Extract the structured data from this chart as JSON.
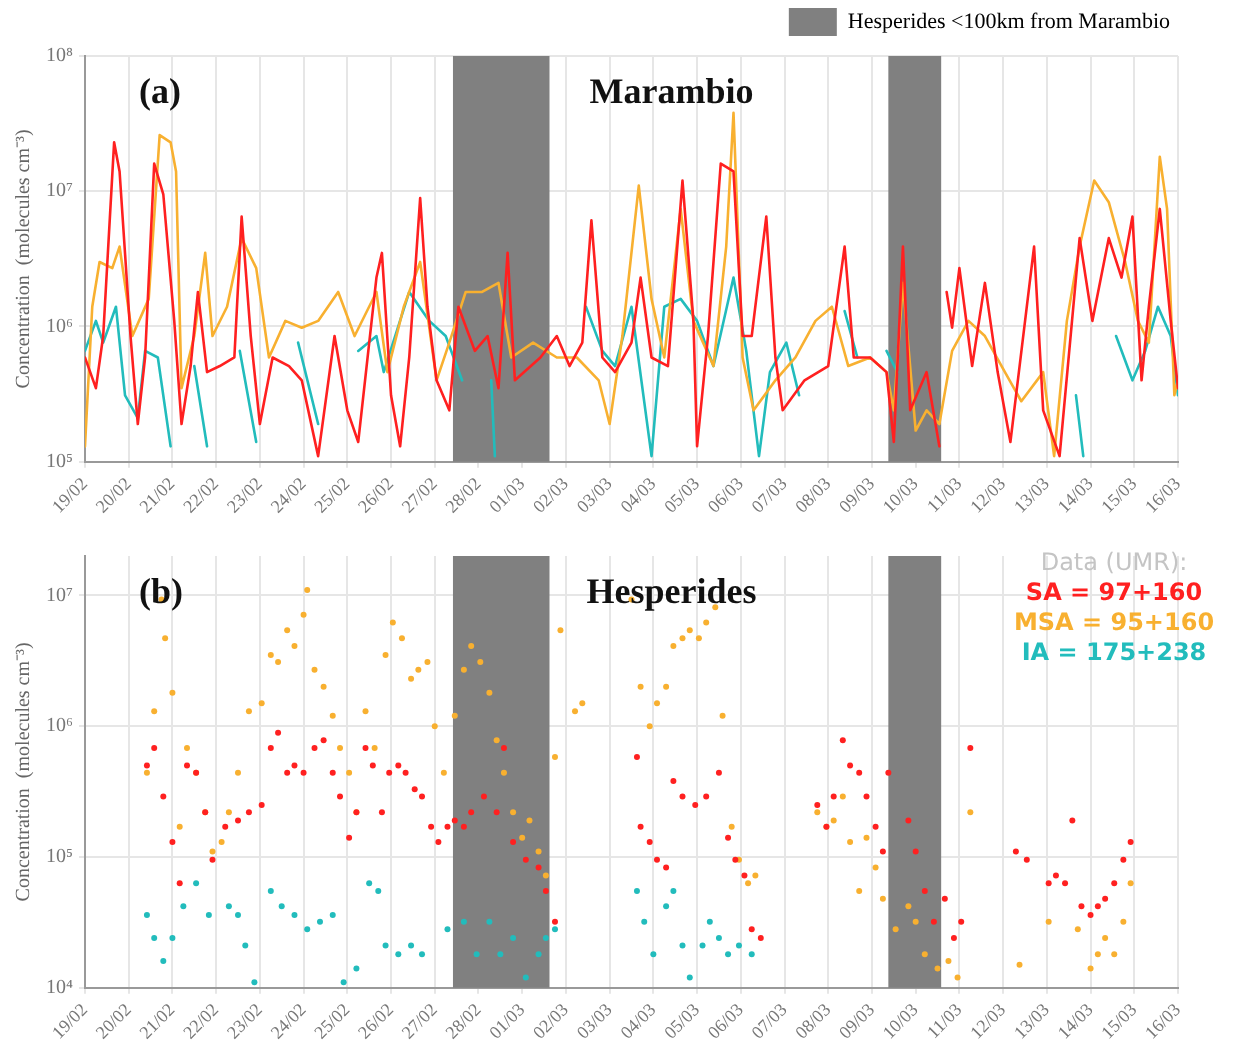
{
  "chart_data": [
    {
      "type": "line",
      "title": "Marambio",
      "annotations": [
        "(a)"
      ],
      "ylabel": "Concentration  (molecules cm⁻³)",
      "log": true,
      "grid": true,
      "marker": "none",
      "line_style": "solid",
      "legend": "top right",
      "xlim": [
        "--02-19",
        "--03-16"
      ],
      "xticks": [
        {
          "value": "--02-19",
          "label": "19/02"
        },
        {
          "value": "--02-20",
          "label": "20/02"
        },
        {
          "value": "--02-21",
          "label": "21/02"
        },
        {
          "value": "--02-22",
          "label": "22/02"
        },
        {
          "value": "--02-23",
          "label": "23/02"
        },
        {
          "value": "--02-24",
          "label": "24/02"
        },
        {
          "value": "--02-25",
          "label": "25/02"
        },
        {
          "value": "--02-26",
          "label": "26/02"
        },
        {
          "value": "--02-27",
          "label": "27/02"
        },
        {
          "value": "--02-28",
          "label": "28/02"
        },
        {
          "value": "--03-01",
          "label": "01/03"
        },
        {
          "value": "--03-02",
          "label": "02/03"
        },
        {
          "value": "--03-03",
          "label": "03/03"
        },
        {
          "value": "--03-04",
          "label": "04/03"
        },
        {
          "value": "--03-05",
          "label": "05/03"
        },
        {
          "value": "--03-06",
          "label": "06/03"
        },
        {
          "value": "--03-07",
          "label": "07/03"
        },
        {
          "value": "--03-08",
          "label": "08/03"
        },
        {
          "value": "--03-09",
          "label": "09/03"
        },
        {
          "value": "--03-10",
          "label": "10/03"
        },
        {
          "value": "--03-11",
          "label": "11/03"
        },
        {
          "value": "--03-12",
          "label": "12/03"
        },
        {
          "value": "--03-13",
          "label": "13/03"
        },
        {
          "value": "--03-14",
          "label": "14/03"
        },
        {
          "value": "--03-15",
          "label": "15/03"
        },
        {
          "value": "--03-16",
          "label": "16/03"
        }
      ],
      "ylim": [
        100000,
        100000000
      ],
      "yticks": [
        {
          "value": 100000,
          "label": "10⁵"
        },
        {
          "value": 1000000,
          "label": "10⁶"
        },
        {
          "value": 10000000,
          "label": "10⁷"
        },
        {
          "value": 100000000,
          "label": "10⁸"
        }
      ],
      "bands": [
        {
          "axis": "x",
          "from": "--02-27T10:00",
          "to": "--03-01T15:00",
          "label": "Hesperides <100km from Marambio",
          "color": "#808080"
        },
        {
          "axis": "x",
          "from": "--03-09T09:00",
          "to": "--03-10T14:00",
          "color": "#808080"
        }
      ],
      "series": [
        {
          "color": "#ff2020",
          "x": [
            "--02-19T00:00",
            "--02-19T06:00",
            "--02-19T10:00",
            "--02-19T16:00",
            "--02-19T19:00",
            "--02-20T01:00",
            "--02-20T05:00",
            "--02-20T09:00",
            "--02-20T14:00",
            "--02-20T19:00",
            "--02-21T01:00",
            "--02-21T05:00",
            "--02-21T10:00",
            "--02-21T14:00",
            "--02-21T19:00",
            "--02-22T02:00",
            "--02-22T10:00",
            "--02-22T14:00",
            "--02-22T19:00",
            "--02-23T00:00",
            "--02-23T07:00",
            "--02-23T16:00",
            "--02-23T23:00",
            "--02-24T08:00",
            "--02-24T17:00",
            "--02-25T00:00",
            "--02-25T06:00",
            "--02-25T16:00",
            "--02-25T19:00",
            "--02-26T00:00",
            "--02-26T05:00",
            "--02-26T10:00",
            "--02-26T16:00",
            "--02-26T20:00",
            "--02-27T01:00",
            "--02-27T08:00",
            "--02-27T13:00",
            "--02-27T22:00",
            "--02-28T05:00",
            "--02-28T11:00",
            "--02-28T16:00",
            "--02-28T20:00",
            "--03-01T10:00",
            "--03-01T19:00",
            "--03-02T02:00",
            "--03-02T09:00",
            "--03-02T14:00",
            "--03-02T20:00",
            "--03-03T03:00",
            "--03-03T12:00",
            "--03-03T17:00",
            "--03-03T23:00",
            "--03-04T08:00",
            "--03-04T16:00",
            "--03-04T22:00",
            "--03-05T00:00",
            "--03-05T06:00",
            "--03-05T13:00",
            "--03-05T20:00",
            "--03-06T01:00",
            "--03-06T06:00",
            "--03-06T14:00",
            "--03-06T19:00",
            "--03-06T23:00",
            "--03-07T11:00",
            "--03-08T00:00",
            "--03-08T09:00",
            "--03-08T14:00",
            "--03-08T23:00",
            "--03-09T08:00",
            "--03-09T12:00",
            "--03-09T17:00",
            "--03-09T21:00",
            "--03-10T06:00",
            "--03-10T13:00",
            "--03-10T15:00",
            "--03-10T17:00",
            "--03-10T20:00",
            "--03-11T00:00",
            "--03-11T07:00",
            "--03-11T14:00",
            "--03-11T21:00",
            "--03-12T04:00",
            "--03-12T17:00",
            "--03-12T22:00",
            "--03-13T07:00",
            "--03-13T18:00",
            "--03-14T01:00",
            "--03-14T10:00",
            "--03-14T17:00",
            "--03-14T23:00",
            "--03-15T04:00",
            "--03-15T08:00",
            "--03-15T14:00",
            "--03-15T20:00",
            "--03-16T00:00"
          ],
          "values": [
            590000.0,
            350000.0,
            850000.0,
            23000000.0,
            14000000.0,
            850000.0,
            190000.0,
            590000.0,
            16000000.0,
            9500000.0,
            1100000.0,
            190000.0,
            510000.0,
            1800000.0,
            460000.0,
            510000.0,
            590000.0,
            6500000.0,
            850000.0,
            190000.0,
            590000.0,
            510000.0,
            400000.0,
            110000.0,
            850000.0,
            240000.0,
            140000.0,
            2300000.0,
            3500000.0,
            310000.0,
            130000.0,
            590000.0,
            8900000.0,
            1400000.0,
            400000.0,
            240000.0,
            1400000.0,
            660000.0,
            850000.0,
            350000.0,
            3500000.0,
            400000.0,
            590000.0,
            850000.0,
            510000.0,
            760000.0,
            6100000.0,
            590000.0,
            460000.0,
            760000.0,
            2300000.0,
            590000.0,
            510000.0,
            12000000.0,
            1100000.0,
            130000.0,
            850000.0,
            16000000.0,
            14000000.0,
            850000.0,
            850000.0,
            6500000.0,
            590000.0,
            240000.0,
            400000.0,
            510000.0,
            3900000.0,
            590000.0,
            590000.0,
            460000.0,
            140000.0,
            3900000.0,
            240000.0,
            460000.0,
            130000.0,
            null,
            1800000.0,
            980000.0,
            2700000.0,
            510000.0,
            2100000.0,
            460000.0,
            140000.0,
            3900000.0,
            240000.0,
            110000.0,
            4500000.0,
            1100000.0,
            4500000.0,
            2300000.0,
            6500000.0,
            400000.0,
            1400000.0,
            7400000.0,
            1100000.0,
            350000.0
          ]
        },
        {
          "color": "#f8b030",
          "x": [
            "--02-19T00:00",
            "--02-19T04:00",
            "--02-19T08:00",
            "--02-19T15:00",
            "--02-19T19:00",
            "--02-20T02:00",
            "--02-20T11:00",
            "--02-20T17:00",
            "--02-20T23:00",
            "--02-21T02:00",
            "--02-21T05:00",
            "--02-21T12:00",
            "--02-21T18:00",
            "--02-21T22:00",
            "--02-22T06:00",
            "--02-22T14:00",
            "--02-22T22:00",
            "--02-23T05:00",
            "--02-23T14:00",
            "--02-23T23:00",
            "--02-24T08:00",
            "--02-24T19:00",
            "--02-25T04:00",
            "--02-25T16:00",
            "--02-25T22:00",
            "--02-26T07:00",
            "--02-26T16:00",
            "--02-27T01:00",
            "--02-27T08:00",
            "--02-27T17:00",
            "--02-28T02:00",
            "--02-28T11:00",
            "--02-28T18:00",
            "--03-01T06:00",
            "--03-01T19:00",
            "--03-02T06:00",
            "--03-02T18:00",
            "--03-03T00:00",
            "--03-03T07:00",
            "--03-03T16:00",
            "--03-03T23:00",
            "--03-04T06:00",
            "--03-04T15:00",
            "--03-04T22:00",
            "--03-05T09:00",
            "--03-05T16:00",
            "--03-05T20:00",
            "--03-06T01:00",
            "--03-06T07:00",
            "--03-06T19:00",
            "--03-07T06:00",
            "--03-07T17:00",
            "--03-08T02:00",
            "--03-08T11:00",
            "--03-08T23:00",
            "--03-09T08:00",
            "--03-09T12:00",
            "--03-09T17:00",
            "--03-10T00:00",
            "--03-10T06:00",
            "--03-10T13:00",
            "--03-10T20:00",
            "--03-11T05:00",
            "--03-11T14:00",
            "--03-12T01:00",
            "--03-12T10:00",
            "--03-12T22:00",
            "--03-13T04:00",
            "--03-13T11:00",
            "--03-13T18:00",
            "--03-14T02:00",
            "--03-14T10:00",
            "--03-14T19:00",
            "--03-15T02:00",
            "--03-15T08:00",
            "--03-15T14:00",
            "--03-15T18:00",
            "--03-15T22:00",
            "--03-16T00:00"
          ],
          "values": [
            130000.0,
            1400000.0,
            3000000.0,
            2700000.0,
            3900000.0,
            850000.0,
            1600000.0,
            26000000.0,
            23000000.0,
            14000000.0,
            350000.0,
            850000.0,
            3500000.0,
            850000.0,
            1400000.0,
            4500000.0,
            2700000.0,
            590000.0,
            1100000.0,
            980000.0,
            1100000.0,
            1800000.0,
            850000.0,
            1800000.0,
            460000.0,
            1400000.0,
            3000000.0,
            400000.0,
            760000.0,
            1800000.0,
            1800000.0,
            2100000.0,
            590000.0,
            760000.0,
            590000.0,
            590000.0,
            400000.0,
            190000.0,
            850000.0,
            11000000.0,
            1600000.0,
            590000.0,
            7400000.0,
            1100000.0,
            510000.0,
            3900000.0,
            38000000.0,
            590000.0,
            240000.0,
            400000.0,
            590000.0,
            1100000.0,
            1400000.0,
            510000.0,
            590000.0,
            460000.0,
            240000.0,
            2100000.0,
            170000.0,
            240000.0,
            190000.0,
            660000.0,
            1100000.0,
            850000.0,
            460000.0,
            280000.0,
            460000.0,
            110000.0,
            1100000.0,
            3900000.0,
            12000000.0,
            8300000.0,
            3000000.0,
            1100000.0,
            760000.0,
            18000000.0,
            7400000.0,
            310000.0,
            400000.0
          ]
        },
        {
          "color": "#22bcbc",
          "x": [
            "--02-19T00:00",
            "--02-19T06:00",
            "--02-19T10:00",
            "--02-19T17:00",
            "--02-19T22:00",
            "--02-20T05:00",
            "--02-20T09:00",
            "--02-20T16:00",
            "--02-20T23:00",
            "--02-21T05:00",
            "--02-21T12:00",
            "--02-21T19:00",
            "--02-22T02:00",
            "--02-22T13:00",
            "--02-22T22:00",
            "--02-23T10:00",
            "--02-23T21:00",
            "--02-24T08:00",
            "--02-24T19:00",
            "--02-25T06:00",
            "--02-25T16:00",
            "--02-25T20:00",
            "--02-26T10:00",
            "--02-26T21:00",
            "--02-27T06:00",
            "--02-27T15:00",
            "--02-28T00:00",
            "--02-28T07:00",
            "--02-28T09:00",
            "--03-01T12:00",
            "--03-02T11:00",
            "--03-02T20:00",
            "--03-03T03:00",
            "--03-03T12:00",
            "--03-03T23:00",
            "--03-04T06:00",
            "--03-04T15:00",
            "--03-05T00:00",
            "--03-05T09:00",
            "--03-05T20:00",
            "--03-06T03:00",
            "--03-06T10:00",
            "--03-06T16:00",
            "--03-07T01:00",
            "--03-07T08:00",
            "--03-07T22:00",
            "--03-08T09:00",
            "--03-08T16:00",
            "--03-09T00:00",
            "--03-09T08:00",
            "--03-09T14:00",
            "--03-11T12:00",
            "--03-13T16:00",
            "--03-13T20:00",
            "--03-14T05:00",
            "--03-14T14:00",
            "--03-14T23:00",
            "--03-15T06:00",
            "--03-15T13:00",
            "--03-15T20:00",
            "--03-16T00:00"
          ],
          "values": [
            660000.0,
            1100000.0,
            760000.0,
            1400000.0,
            310000.0,
            210000.0,
            660000.0,
            590000.0,
            130000.0,
            null,
            510000.0,
            130000.0,
            null,
            660000.0,
            140000.0,
            null,
            760000.0,
            190000.0,
            null,
            660000.0,
            850000.0,
            460000.0,
            1800000.0,
            1100000.0,
            850000.0,
            400000.0,
            null,
            400000.0,
            110000.0,
            null,
            1400000.0,
            660000.0,
            510000.0,
            1400000.0,
            110000.0,
            1400000.0,
            1600000.0,
            1100000.0,
            510000.0,
            2300000.0,
            660000.0,
            110000.0,
            460000.0,
            760000.0,
            310000.0,
            null,
            1300000.0,
            590000.0,
            null,
            660000.0,
            460000.0,
            null,
            310000.0,
            110000.0,
            null,
            850000.0,
            400000.0,
            660000.0,
            1400000.0,
            850000.0,
            310000.0
          ]
        }
      ]
    },
    {
      "type": "scatter",
      "title": "Hesperides",
      "annotations": [
        "(b)"
      ],
      "ylabel": "Concentration  (molecules cm⁻³)",
      "log": true,
      "grid": true,
      "marker": "circle",
      "legend": "top right",
      "legend_title": "Data (UMR):",
      "xlim": [
        "--02-19",
        "--03-16"
      ],
      "xticks": [
        {
          "value": "--02-19",
          "label": "19/02"
        },
        {
          "value": "--02-20",
          "label": "20/02"
        },
        {
          "value": "--02-21",
          "label": "21/02"
        },
        {
          "value": "--02-22",
          "label": "22/02"
        },
        {
          "value": "--02-23",
          "label": "23/02"
        },
        {
          "value": "--02-24",
          "label": "24/02"
        },
        {
          "value": "--02-25",
          "label": "25/02"
        },
        {
          "value": "--02-26",
          "label": "26/02"
        },
        {
          "value": "--02-27",
          "label": "27/02"
        },
        {
          "value": "--02-28",
          "label": "28/02"
        },
        {
          "value": "--03-01",
          "label": "01/03"
        },
        {
          "value": "--03-02",
          "label": "02/03"
        },
        {
          "value": "--03-03",
          "label": "03/03"
        },
        {
          "value": "--03-04",
          "label": "04/03"
        },
        {
          "value": "--03-05",
          "label": "05/03"
        },
        {
          "value": "--03-06",
          "label": "06/03"
        },
        {
          "value": "--03-07",
          "label": "07/03"
        },
        {
          "value": "--03-08",
          "label": "08/03"
        },
        {
          "value": "--03-09",
          "label": "09/03"
        },
        {
          "value": "--03-10",
          "label": "10/03"
        },
        {
          "value": "--03-11",
          "label": "11/03"
        },
        {
          "value": "--03-12",
          "label": "12/03"
        },
        {
          "value": "--03-13",
          "label": "13/03"
        },
        {
          "value": "--03-14",
          "label": "14/03"
        },
        {
          "value": "--03-15",
          "label": "15/03"
        },
        {
          "value": "--03-16",
          "label": "16/03"
        }
      ],
      "ylim": [
        10000,
        20000000
      ],
      "yticks": [
        {
          "value": 10000,
          "label": "10⁴"
        },
        {
          "value": 100000,
          "label": "10⁵"
        },
        {
          "value": 1000000,
          "label": "10⁶"
        },
        {
          "value": 10000000,
          "label": "10⁷"
        }
      ],
      "bands": [
        {
          "axis": "x",
          "from": "--02-27T10:00",
          "to": "--03-01T15:00",
          "color": "#808080"
        },
        {
          "axis": "x",
          "from": "--03-09T09:00",
          "to": "--03-10T14:00",
          "color": "#808080"
        }
      ],
      "series": [
        {
          "name": "SA = 97+160",
          "color": "#ff2020",
          "x": [
            "--02-20T10:00",
            "--02-20T14:00",
            "--02-20T19:00",
            "--02-21T00:00",
            "--02-21T04:00",
            "--02-21T08:00",
            "--02-21T13:00",
            "--02-21T18:00",
            "--02-21T22:00",
            "--02-22T05:00",
            "--02-22T12:00",
            "--02-22T18:00",
            "--02-23T01:00",
            "--02-23T06:00",
            "--02-23T10:00",
            "--02-23T15:00",
            "--02-23T19:00",
            "--02-24T00:00",
            "--02-24T06:00",
            "--02-24T11:00",
            "--02-24T16:00",
            "--02-24T20:00",
            "--02-25T01:00",
            "--02-25T05:00",
            "--02-25T10:00",
            "--02-25T14:00",
            "--02-25T19:00",
            "--02-25T23:00",
            "--02-26T04:00",
            "--02-26T08:00",
            "--02-26T13:00",
            "--02-26T17:00",
            "--02-26T22:00",
            "--02-27T02:00",
            "--02-27T07:00",
            "--02-27T11:00",
            "--02-27T16:00",
            "--02-27T20:00",
            "--02-28T03:00",
            "--02-28T10:00",
            "--02-28T14:00",
            "--02-28T19:00",
            "--03-01T02:00",
            "--03-01T09:00",
            "--03-01T13:00",
            "--03-01T18:00",
            "--03-03T15:00",
            "--03-03T17:00",
            "--03-03T22:00",
            "--03-04T02:00",
            "--03-04T07:00",
            "--03-04T11:00",
            "--03-04T16:00",
            "--03-04T23:00",
            "--03-05T05:00",
            "--03-05T12:00",
            "--03-05T17:00",
            "--03-05T21:00",
            "--03-06T02:00",
            "--03-06T06:00",
            "--03-06T11:00",
            "--03-07T18:00",
            "--03-07T23:00",
            "--03-08T03:00",
            "--03-08T08:00",
            "--03-08T12:00",
            "--03-08T17:00",
            "--03-08T21:00",
            "--03-09T02:00",
            "--03-09T06:00",
            "--03-09T09:00",
            "--03-09T20:00",
            "--03-10T00:00",
            "--03-10T05:00",
            "--03-10T10:00",
            "--03-10T16:00",
            "--03-10T21:00",
            "--03-11T01:00",
            "--03-11T06:00",
            "--03-12T07:00",
            "--03-12T13:00",
            "--03-13T01:00",
            "--03-13T05:00",
            "--03-13T10:00",
            "--03-13T14:00",
            "--03-13T19:00",
            "--03-14T00:00",
            "--03-14T04:00",
            "--03-14T08:00",
            "--03-14T13:00",
            "--03-14T18:00",
            "--03-14T22:00"
          ],
          "values": [
            500000.0,
            680000.0,
            290000.0,
            130000.0,
            63000.0,
            500000.0,
            440000.0,
            220000.0,
            95000.0,
            170000.0,
            190000.0,
            220000.0,
            250000.0,
            680000.0,
            890000.0,
            440000.0,
            500000.0,
            440000.0,
            680000.0,
            780000.0,
            440000.0,
            290000.0,
            140000.0,
            220000.0,
            680000.0,
            500000.0,
            220000.0,
            440000.0,
            500000.0,
            440000.0,
            330000.0,
            290000.0,
            170000.0,
            130000.0,
            170000.0,
            190000.0,
            170000.0,
            220000.0,
            290000.0,
            220000.0,
            680000.0,
            130000.0,
            95000.0,
            83000.0,
            55000.0,
            32000.0,
            580000.0,
            170000.0,
            130000.0,
            95000.0,
            83000.0,
            380000.0,
            290000.0,
            250000.0,
            290000.0,
            440000.0,
            140000.0,
            95000.0,
            72000.0,
            28000.0,
            24000.0,
            250000.0,
            170000.0,
            290000.0,
            780000.0,
            500000.0,
            440000.0,
            290000.0,
            170000.0,
            110000.0,
            440000.0,
            190000.0,
            110000.0,
            55000.0,
            32000.0,
            48000.0,
            24000.0,
            32000.0,
            680000.0,
            110000.0,
            95000.0,
            63000.0,
            72000.0,
            63000.0,
            190000.0,
            42000.0,
            36000.0,
            42000.0,
            48000.0,
            63000.0,
            95000.0,
            130000.0
          ]
        },
        {
          "name": "MSA = 95+160",
          "color": "#f8b030",
          "x": [
            "--02-20T10:00",
            "--02-20T14:00",
            "--02-20T18:00",
            "--02-20T20:00",
            "--02-21T00:00",
            "--02-21T04:00",
            "--02-21T08:00",
            "--02-21T13:00",
            "--02-21T18:00",
            "--02-21T22:00",
            "--02-22T03:00",
            "--02-22T07:00",
            "--02-22T12:00",
            "--02-22T18:00",
            "--02-23T01:00",
            "--02-23T06:00",
            "--02-23T10:00",
            "--02-23T15:00",
            "--02-23T19:00",
            "--02-24T00:00",
            "--02-24T02:00",
            "--02-24T06:00",
            "--02-24T11:00",
            "--02-24T16:00",
            "--02-24T20:00",
            "--02-25T01:00",
            "--02-25T05:00",
            "--02-25T10:00",
            "--02-25T15:00",
            "--02-25T21:00",
            "--02-26T01:00",
            "--02-26T06:00",
            "--02-26T11:00",
            "--02-26T15:00",
            "--02-26T20:00",
            "--02-27T00:00",
            "--02-27T05:00",
            "--02-27T11:00",
            "--02-27T16:00",
            "--02-27T20:00",
            "--02-28T01:00",
            "--02-28T06:00",
            "--02-28T10:00",
            "--02-28T14:00",
            "--02-28T19:00",
            "--03-01T00:00",
            "--03-01T04:00",
            "--03-01T09:00",
            "--03-01T13:00",
            "--03-01T18:00",
            "--03-01T21:00",
            "--03-02T05:00",
            "--03-02T09:00",
            "--03-03T12:00",
            "--03-03T17:00",
            "--03-03T22:00",
            "--03-04T02:00",
            "--03-04T07:00",
            "--03-04T11:00",
            "--03-04T16:00",
            "--03-04T20:00",
            "--03-05T01:00",
            "--03-05T05:00",
            "--03-05T10:00",
            "--03-05T14:00",
            "--03-05T19:00",
            "--03-05T23:00",
            "--03-06T04:00",
            "--03-06T08:00",
            "--03-07T18:00",
            "--03-07T23:00",
            "--03-08T03:00",
            "--03-08T08:00",
            "--03-08T12:00",
            "--03-08T17:00",
            "--03-08T21:00",
            "--03-09T02:00",
            "--03-09T06:00",
            "--03-09T13:00",
            "--03-09T20:00",
            "--03-10T00:00",
            "--03-10T05:00",
            "--03-10T12:00",
            "--03-10T18:00",
            "--03-10T23:00",
            "--03-11T06:00",
            "--03-12T09:00",
            "--03-13T01:00",
            "--03-13T17:00",
            "--03-14T00:00",
            "--03-14T04:00",
            "--03-14T08:00",
            "--03-14T13:00",
            "--03-14T18:00",
            "--03-14T22:00"
          ],
          "values": [
            440000.0,
            1300000.0,
            9300000.0,
            4700000.0,
            1800000.0,
            170000.0,
            680000.0,
            440000.0,
            220000.0,
            110000.0,
            130000.0,
            220000.0,
            440000.0,
            1300000.0,
            1500000.0,
            3500000.0,
            3100000.0,
            5400000.0,
            4100000.0,
            7100000.0,
            11000000.0,
            2700000.0,
            2000000.0,
            1200000.0,
            680000.0,
            440000.0,
            220000.0,
            1300000.0,
            680000.0,
            3500000.0,
            6200000.0,
            4700000.0,
            2300000.0,
            2700000.0,
            3100000.0,
            1000000.0,
            440000.0,
            1200000.0,
            2700000.0,
            4100000.0,
            3100000.0,
            1800000.0,
            780000.0,
            440000.0,
            220000.0,
            140000.0,
            190000.0,
            110000.0,
            72000.0,
            580000.0,
            5400000.0,
            1300000.0,
            1500000.0,
            9300000.0,
            2000000.0,
            1000000.0,
            1500000.0,
            2000000.0,
            4100000.0,
            4700000.0,
            5400000.0,
            4700000.0,
            6200000.0,
            8100000.0,
            1200000.0,
            170000.0,
            95000.0,
            63000.0,
            72000.0,
            220000.0,
            170000.0,
            190000.0,
            290000.0,
            130000.0,
            55000.0,
            140000.0,
            83000.0,
            48000.0,
            28000.0,
            42000.0,
            32000.0,
            18000.0,
            14000.0,
            16000.0,
            12000.0,
            220000.0,
            15000.0,
            32000.0,
            28000.0,
            14000.0,
            18000.0,
            24000.0,
            18000.0,
            32000.0,
            63000.0
          ]
        },
        {
          "name": "IA = 175+238",
          "color": "#22bcbc",
          "x": [
            "--02-20T10:00",
            "--02-20T14:00",
            "--02-20T19:00",
            "--02-21T00:00",
            "--02-21T06:00",
            "--02-21T13:00",
            "--02-21T20:00",
            "--02-22T07:00",
            "--02-22T12:00",
            "--02-22T16:00",
            "--02-22T21:00",
            "--02-23T06:00",
            "--02-23T12:00",
            "--02-23T19:00",
            "--02-24T02:00",
            "--02-24T09:00",
            "--02-24T16:00",
            "--02-24T22:00",
            "--02-25T05:00",
            "--02-25T12:00",
            "--02-25T17:00",
            "--02-25T21:00",
            "--02-26T04:00",
            "--02-26T11:00",
            "--02-26T17:00",
            "--02-27T07:00",
            "--02-27T16:00",
            "--02-27T23:00",
            "--02-28T06:00",
            "--02-28T12:00",
            "--02-28T19:00",
            "--03-01T02:00",
            "--03-01T09:00",
            "--03-01T13:00",
            "--03-01T18:00",
            "--03-03T15:00",
            "--03-03T19:00",
            "--03-04T00:00",
            "--03-04T07:00",
            "--03-04T11:00",
            "--03-04T16:00",
            "--03-04T20:00",
            "--03-05T03:00",
            "--03-05T07:00",
            "--03-05T12:00",
            "--03-05T17:00",
            "--03-05T23:00",
            "--03-06T06:00"
          ],
          "values": [
            36000.0,
            24000.0,
            16000.0,
            24000.0,
            42000.0,
            63000.0,
            36000.0,
            42000.0,
            36000.0,
            21000.0,
            11000.0,
            55000.0,
            42000.0,
            36000.0,
            28000.0,
            32000.0,
            36000.0,
            11000.0,
            14000.0,
            63000.0,
            55000.0,
            21000.0,
            18000.0,
            21000.0,
            18000.0,
            28000.0,
            32000.0,
            18000.0,
            32000.0,
            18000.0,
            24000.0,
            12000.0,
            18000.0,
            24000.0,
            28000.0,
            55000.0,
            32000.0,
            18000.0,
            42000.0,
            55000.0,
            21000.0,
            12000.0,
            21000.0,
            32000.0,
            24000.0,
            18000.0,
            21000.0,
            18000.0
          ]
        }
      ]
    }
  ]
}
